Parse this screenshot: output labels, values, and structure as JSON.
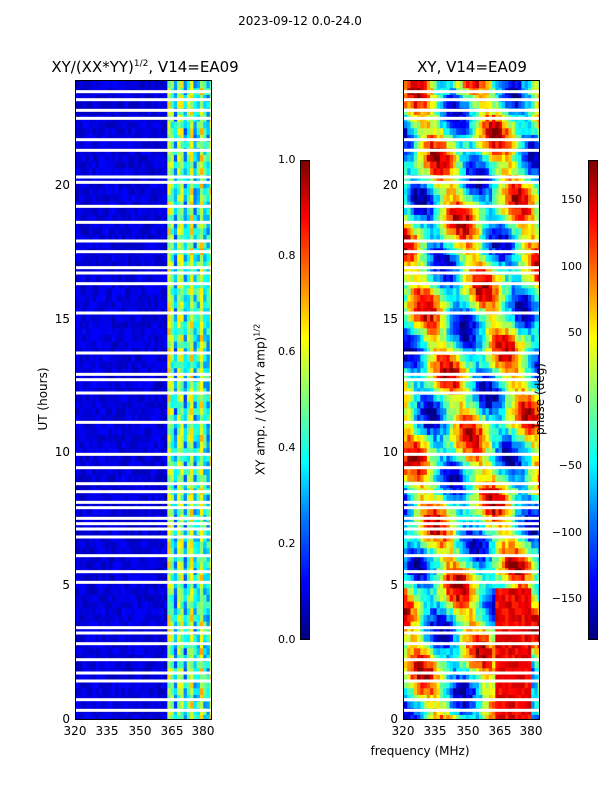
{
  "suptitle": "2023-09-12 0.0-24.0",
  "chart_data": [
    {
      "type": "heatmap",
      "title_main": "XY/(XX*YY)",
      "title_sup": "1/2",
      "title_suffix": ", V14=EA09",
      "xlabel": "",
      "ylabel": "UT (hours)",
      "xlim": [
        320,
        383
      ],
      "ylim": [
        0,
        24
      ],
      "xticks": [
        320,
        335,
        350,
        365,
        380
      ],
      "yticks": [
        0,
        5,
        10,
        15,
        20
      ],
      "colorbar": {
        "label": "XY amp. / (XX*YY amp)",
        "label_sup": "1/2",
        "range": [
          0.0,
          1.0
        ],
        "ticks": [
          "0.0",
          "0.2",
          "0.4",
          "0.6",
          "0.8",
          "1.0"
        ],
        "colormap": "jet"
      },
      "bright_band_mhz": [
        362,
        383
      ],
      "typical_value_low_band": 0.05,
      "typical_value_high_band": 0.45
    },
    {
      "type": "heatmap",
      "title": "XY, V14=EA09",
      "xlabel": "frequency (MHz)",
      "ylabel": "",
      "xlim": [
        320,
        383
      ],
      "ylim": [
        0,
        24
      ],
      "xticks": [
        320,
        335,
        350,
        365,
        380
      ],
      "yticks": [
        0,
        5,
        10,
        15,
        20
      ],
      "colorbar": {
        "label": "phase (deg)",
        "range": [
          -180,
          180
        ],
        "ticks": [
          "150",
          "100",
          "50",
          "0",
          "−50",
          "−100",
          "−150"
        ],
        "tick_values": [
          150,
          100,
          50,
          0,
          -50,
          -100,
          -150
        ],
        "colormap": "jet"
      }
    }
  ],
  "flagged_hours": [
    0.4,
    0.8,
    1.5,
    1.8,
    2.3,
    2.9,
    3.3,
    3.5,
    5.2,
    5.6,
    6.2,
    6.9,
    7.2,
    7.4,
    7.6,
    8.0,
    8.2,
    8.6,
    8.9,
    9.5,
    10.0,
    11.2,
    12.3,
    12.8,
    13.0,
    13.8,
    15.3,
    16.4,
    16.8,
    17.0,
    17.6,
    18.0,
    18.7,
    19.3,
    20.2,
    20.4,
    21.4,
    21.8,
    22.6,
    22.9,
    23.3,
    23.6
  ]
}
